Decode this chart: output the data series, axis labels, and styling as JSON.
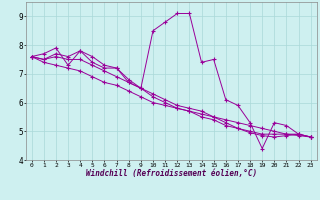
{
  "background_color": "#cef0f0",
  "grid_color": "#aad8d8",
  "line_color": "#990099",
  "marker": "+",
  "xlabel": "Windchill (Refroidissement éolien,°C)",
  "xlim": [
    -0.5,
    23.5
  ],
  "ylim": [
    4,
    9.5
  ],
  "yticks": [
    4,
    5,
    6,
    7,
    8,
    9
  ],
  "xticks": [
    0,
    1,
    2,
    3,
    4,
    5,
    6,
    7,
    8,
    9,
    10,
    11,
    12,
    13,
    14,
    15,
    16,
    17,
    18,
    19,
    20,
    21,
    22,
    23
  ],
  "series": [
    [
      7.6,
      7.7,
      7.9,
      7.3,
      7.8,
      7.6,
      7.3,
      7.2,
      6.8,
      6.5,
      8.5,
      8.8,
      9.1,
      9.1,
      7.4,
      7.5,
      6.1,
      5.9,
      5.3,
      4.4,
      5.3,
      5.2,
      4.9,
      4.8
    ],
    [
      7.6,
      7.5,
      7.6,
      7.5,
      7.5,
      7.3,
      7.1,
      6.9,
      6.7,
      6.5,
      6.2,
      6.0,
      5.8,
      5.7,
      5.5,
      5.4,
      5.2,
      5.1,
      5.0,
      4.9,
      4.9,
      4.9,
      4.9,
      4.8
    ],
    [
      7.6,
      7.4,
      7.3,
      7.2,
      7.1,
      6.9,
      6.7,
      6.6,
      6.4,
      6.2,
      6.0,
      5.9,
      5.8,
      5.7,
      5.6,
      5.5,
      5.4,
      5.3,
      5.2,
      5.1,
      5.0,
      4.9,
      4.85,
      4.8
    ],
    [
      7.6,
      7.5,
      7.7,
      7.6,
      7.8,
      7.4,
      7.2,
      7.2,
      6.7,
      6.5,
      6.3,
      6.1,
      5.9,
      5.8,
      5.7,
      5.5,
      5.3,
      5.1,
      4.95,
      4.85,
      4.8,
      4.85,
      4.9,
      4.8
    ]
  ]
}
